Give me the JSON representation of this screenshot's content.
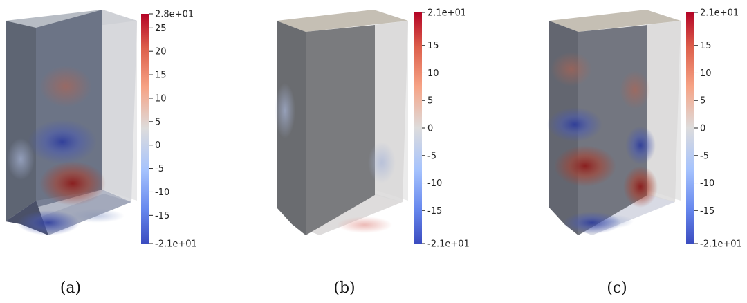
{
  "figures": [
    {
      "caption": "(a)",
      "colorbar": {
        "max_label": "2.8e+01",
        "min_label": "-2.1e+01",
        "min": -21,
        "max": 28,
        "tick_labels": [
          "25",
          "20",
          "15",
          "10",
          "5",
          "0",
          "-5",
          "-10",
          "-15"
        ],
        "ticks": [
          25,
          20,
          15,
          10,
          5,
          0,
          -5,
          -10,
          -15
        ]
      }
    },
    {
      "caption": "(b)",
      "colorbar": {
        "max_label": "2.1e+01",
        "min_label": "-2.1e+01",
        "min": -21,
        "max": 21,
        "tick_labels": [
          "15",
          "10",
          "5",
          "0",
          "-5",
          "-10",
          "-15"
        ],
        "ticks": [
          15,
          10,
          5,
          0,
          -5,
          -10,
          -15
        ]
      }
    },
    {
      "caption": "(c)",
      "colorbar": {
        "max_label": "2.1e+01",
        "min_label": "-2.1e+01",
        "min": -21,
        "max": 21,
        "tick_labels": [
          "15",
          "10",
          "5",
          "0",
          "-5",
          "-10",
          "-15"
        ],
        "ticks": [
          15,
          10,
          5,
          0,
          -5,
          -10,
          -15
        ]
      }
    }
  ],
  "colors": {
    "colormap_top": "#b40426",
    "colormap_mid": "#dddddd",
    "colormap_bottom": "#3b4cc0",
    "box_dark": "#5d6470",
    "box_light": "#dcdcdc"
  }
}
